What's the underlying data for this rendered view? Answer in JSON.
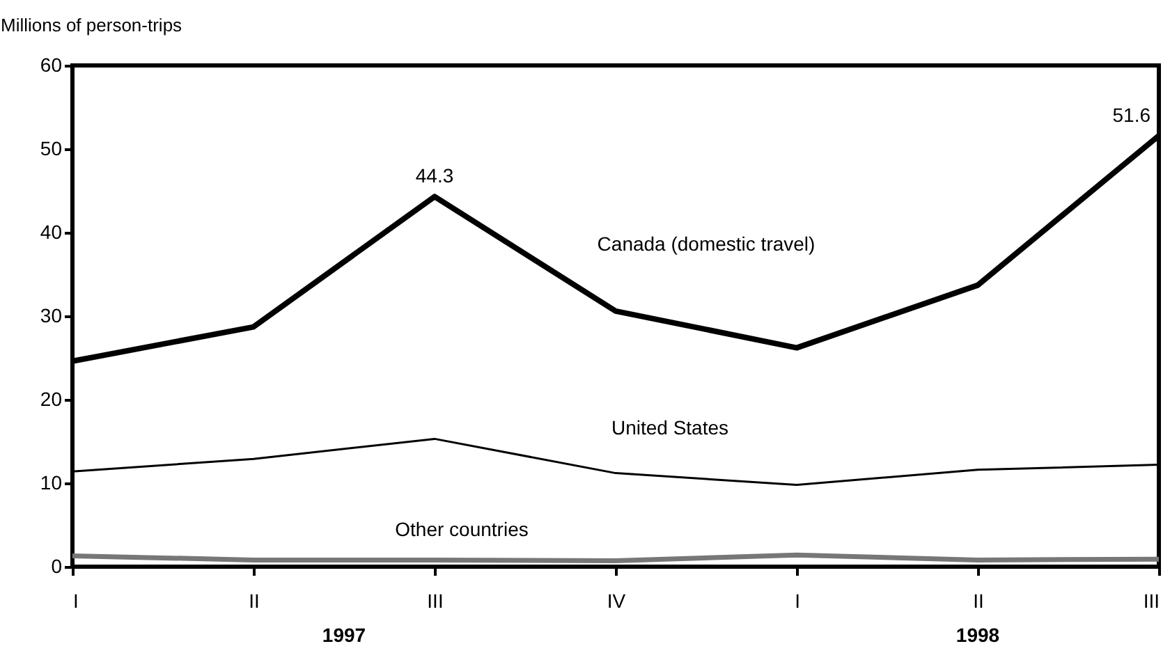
{
  "chart_data": {
    "type": "line",
    "ylabel": "Millions of person-trips",
    "categories": [
      "I",
      "II",
      "III",
      "IV",
      "I",
      "II",
      "III"
    ],
    "ylim": [
      0,
      60
    ],
    "yticks": [
      0,
      10,
      20,
      30,
      40,
      50,
      60
    ],
    "grid": false,
    "marker": "none",
    "line_style": "solid",
    "series": [
      {
        "name": "Canada (domestic travel)",
        "color": "#000000",
        "values": [
          24.6,
          28.7,
          44.3,
          30.6,
          26.2,
          33.7,
          51.6
        ],
        "value_labels": [
          null,
          null,
          "44.3",
          null,
          null,
          null,
          "51.6"
        ]
      },
      {
        "name": "United States",
        "color": "#000000",
        "values": [
          11.4,
          12.9,
          15.3,
          11.2,
          9.8,
          11.6,
          12.2
        ]
      },
      {
        "name": "Other countries",
        "color": "#777777",
        "values": [
          1.3,
          0.8,
          0.8,
          0.7,
          1.4,
          0.8,
          0.9
        ]
      }
    ],
    "annotations": [
      "1997",
      "1998"
    ]
  }
}
